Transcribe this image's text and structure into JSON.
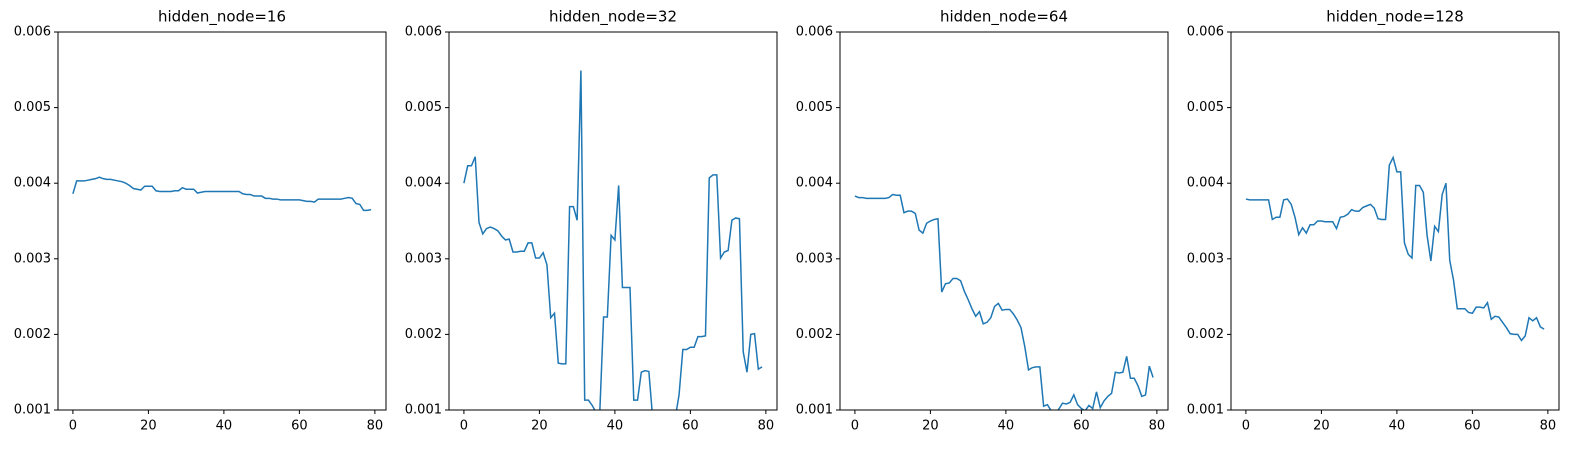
{
  "chart_data": [
    {
      "type": "line",
      "title": "hidden_node=16",
      "x": [
        0,
        1,
        2,
        3,
        4,
        5,
        6,
        7,
        8,
        9,
        10,
        11,
        12,
        13,
        14,
        15,
        16,
        17,
        18,
        19,
        20,
        21,
        22,
        23,
        24,
        25,
        26,
        27,
        28,
        29,
        30,
        31,
        32,
        33,
        34,
        35,
        36,
        37,
        38,
        39,
        40,
        41,
        42,
        43,
        44,
        45,
        46,
        47,
        48,
        49,
        50,
        51,
        52,
        53,
        54,
        55,
        56,
        57,
        58,
        59,
        60,
        61,
        62,
        63,
        64,
        65,
        66,
        67,
        68,
        69,
        70,
        71,
        72,
        73,
        74,
        75,
        76,
        77,
        78,
        79
      ],
      "series": [
        {
          "color": "#1f77b4",
          "values": [
            0.00386,
            0.00403,
            0.00403,
            0.00403,
            0.00404,
            0.00405,
            0.00406,
            0.00408,
            0.00406,
            0.00405,
            0.00405,
            0.00404,
            0.00403,
            0.00402,
            0.004,
            0.00397,
            0.00393,
            0.00392,
            0.00391,
            0.00396,
            0.00396,
            0.00396,
            0.0039,
            0.00389,
            0.00389,
            0.00389,
            0.00389,
            0.0039,
            0.0039,
            0.00394,
            0.00392,
            0.00392,
            0.00392,
            0.00387,
            0.00388,
            0.00389,
            0.00389,
            0.00389,
            0.00389,
            0.00389,
            0.00389,
            0.00389,
            0.00389,
            0.00389,
            0.00389,
            0.00386,
            0.00385,
            0.00385,
            0.00383,
            0.00383,
            0.00383,
            0.0038,
            0.0038,
            0.00379,
            0.00379,
            0.00378,
            0.00378,
            0.00378,
            0.00378,
            0.00378,
            0.00378,
            0.00377,
            0.00376,
            0.00376,
            0.00375,
            0.00379,
            0.00379,
            0.00379,
            0.00379,
            0.00379,
            0.00379,
            0.00379,
            0.0038,
            0.00381,
            0.0038,
            0.00373,
            0.00372,
            0.00364,
            0.00364,
            0.00365
          ]
        }
      ],
      "xlim": [
        -3.95,
        82.95
      ],
      "xticks": [
        0,
        20,
        40,
        60,
        80
      ],
      "ylim": [
        0.001,
        0.006
      ],
      "yticks": [
        0.001,
        0.002,
        0.003,
        0.004,
        0.005,
        0.006
      ]
    },
    {
      "type": "line",
      "title": "hidden_node=32",
      "x": [
        0,
        1,
        2,
        3,
        4,
        5,
        6,
        7,
        8,
        9,
        10,
        11,
        12,
        13,
        14,
        15,
        16,
        17,
        18,
        19,
        20,
        21,
        22,
        23,
        24,
        25,
        26,
        27,
        28,
        29,
        30,
        31,
        32,
        33,
        34,
        35,
        36,
        37,
        38,
        39,
        40,
        41,
        42,
        43,
        44,
        45,
        46,
        47,
        48,
        49,
        50,
        51,
        52,
        53,
        54,
        55,
        56,
        57,
        58,
        59,
        60,
        61,
        62,
        63,
        64,
        65,
        66,
        67,
        68,
        69,
        70,
        71,
        72,
        73,
        74,
        75,
        76,
        77,
        78,
        79
      ],
      "series": [
        {
          "color": "#1f77b4",
          "values": [
            0.004,
            0.00423,
            0.00423,
            0.00435,
            0.00348,
            0.00333,
            0.0034,
            0.00342,
            0.0034,
            0.00337,
            0.0033,
            0.00325,
            0.00326,
            0.00309,
            0.00309,
            0.0031,
            0.0031,
            0.00321,
            0.00321,
            0.00301,
            0.00301,
            0.00308,
            0.00292,
            0.00222,
            0.00228,
            0.00162,
            0.00161,
            0.00161,
            0.00369,
            0.00369,
            0.00351,
            0.00549,
            0.00113,
            0.00113,
            0.00106,
            0.00097,
            0.00097,
            0.00223,
            0.00223,
            0.00331,
            0.00325,
            0.00397,
            0.00262,
            0.00262,
            0.00262,
            0.00113,
            0.00113,
            0.0015,
            0.00152,
            0.00151,
            0.0009,
            0.0009,
            0.0009,
            0.0009,
            0.0009,
            0.0009,
            0.0009,
            0.0012,
            0.0018,
            0.0018,
            0.00183,
            0.00183,
            0.00197,
            0.00197,
            0.00198,
            0.00407,
            0.00411,
            0.00411,
            0.00301,
            0.00309,
            0.00311,
            0.00351,
            0.00354,
            0.00353,
            0.00177,
            0.0015,
            0.002,
            0.00201,
            0.00154,
            0.00157
          ]
        }
      ],
      "xlim": [
        -3.95,
        82.95
      ],
      "xticks": [
        0,
        20,
        40,
        60,
        80
      ],
      "ylim": [
        0.001,
        0.006
      ],
      "yticks": [
        0.001,
        0.002,
        0.003,
        0.004,
        0.005,
        0.006
      ]
    },
    {
      "type": "line",
      "title": "hidden_node=64",
      "x": [
        0,
        1,
        2,
        3,
        4,
        5,
        6,
        7,
        8,
        9,
        10,
        11,
        12,
        13,
        14,
        15,
        16,
        17,
        18,
        19,
        20,
        21,
        22,
        23,
        24,
        25,
        26,
        27,
        28,
        29,
        30,
        31,
        32,
        33,
        34,
        35,
        36,
        37,
        38,
        39,
        40,
        41,
        42,
        43,
        44,
        45,
        46,
        47,
        48,
        49,
        50,
        51,
        52,
        53,
        54,
        55,
        56,
        57,
        58,
        59,
        60,
        61,
        62,
        63,
        64,
        65,
        66,
        67,
        68,
        69,
        70,
        71,
        72,
        73,
        74,
        75,
        76,
        77,
        78,
        79
      ],
      "series": [
        {
          "color": "#1f77b4",
          "values": [
            0.00383,
            0.00381,
            0.00381,
            0.0038,
            0.0038,
            0.0038,
            0.0038,
            0.0038,
            0.0038,
            0.00381,
            0.00385,
            0.00384,
            0.00384,
            0.00361,
            0.00363,
            0.00363,
            0.0036,
            0.00338,
            0.00334,
            0.00347,
            0.0035,
            0.00352,
            0.00353,
            0.00256,
            0.00267,
            0.00268,
            0.00274,
            0.00274,
            0.00271,
            0.00257,
            0.00246,
            0.00234,
            0.00224,
            0.0023,
            0.00214,
            0.00216,
            0.00222,
            0.00237,
            0.00241,
            0.00232,
            0.00233,
            0.00233,
            0.00227,
            0.00219,
            0.00209,
            0.00184,
            0.00153,
            0.00156,
            0.00157,
            0.00157,
            0.00105,
            0.00107,
            0.00099,
            0.00095,
            0.00101,
            0.00109,
            0.00108,
            0.0011,
            0.0012,
            0.00107,
            0.00102,
            0.00099,
            0.00106,
            0.00102,
            0.00124,
            0.00103,
            0.00112,
            0.00118,
            0.00122,
            0.0015,
            0.00149,
            0.0015,
            0.00171,
            0.00142,
            0.00142,
            0.00132,
            0.00118,
            0.0012,
            0.00158,
            0.00143
          ]
        }
      ],
      "xlim": [
        -3.95,
        82.95
      ],
      "xticks": [
        0,
        20,
        40,
        60,
        80
      ],
      "ylim": [
        0.001,
        0.006
      ],
      "yticks": [
        0.001,
        0.002,
        0.003,
        0.004,
        0.005,
        0.006
      ]
    },
    {
      "type": "line",
      "title": "hidden_node=128",
      "x": [
        0,
        1,
        2,
        3,
        4,
        5,
        6,
        7,
        8,
        9,
        10,
        11,
        12,
        13,
        14,
        15,
        16,
        17,
        18,
        19,
        20,
        21,
        22,
        23,
        24,
        25,
        26,
        27,
        28,
        29,
        30,
        31,
        32,
        33,
        34,
        35,
        36,
        37,
        38,
        39,
        40,
        41,
        42,
        43,
        44,
        45,
        46,
        47,
        48,
        49,
        50,
        51,
        52,
        53,
        54,
        55,
        56,
        57,
        58,
        59,
        60,
        61,
        62,
        63,
        64,
        65,
        66,
        67,
        68,
        69,
        70,
        71,
        72,
        73,
        74,
        75,
        76,
        77,
        78,
        79
      ],
      "series": [
        {
          "color": "#1f77b4",
          "values": [
            0.00379,
            0.00378,
            0.00378,
            0.00378,
            0.00378,
            0.00378,
            0.00378,
            0.00352,
            0.00355,
            0.00355,
            0.00378,
            0.00379,
            0.00372,
            0.00355,
            0.00332,
            0.00341,
            0.00334,
            0.00345,
            0.00345,
            0.0035,
            0.0035,
            0.00349,
            0.00349,
            0.00349,
            0.0034,
            0.00355,
            0.00356,
            0.00359,
            0.00365,
            0.00363,
            0.00363,
            0.00368,
            0.0037,
            0.00372,
            0.00367,
            0.00353,
            0.00352,
            0.00352,
            0.00424,
            0.00434,
            0.00415,
            0.00415,
            0.00321,
            0.00306,
            0.00301,
            0.00397,
            0.00397,
            0.00388,
            0.00331,
            0.00297,
            0.00343,
            0.00336,
            0.00385,
            0.004,
            0.00298,
            0.00272,
            0.00234,
            0.00234,
            0.00234,
            0.00229,
            0.00228,
            0.00236,
            0.00236,
            0.00235,
            0.00242,
            0.0022,
            0.00224,
            0.00223,
            0.00216,
            0.00209,
            0.00201,
            0.002,
            0.002,
            0.00192,
            0.00198,
            0.00222,
            0.00218,
            0.00222,
            0.0021,
            0.00207
          ]
        }
      ],
      "xlim": [
        -3.95,
        82.95
      ],
      "xticks": [
        0,
        20,
        40,
        60,
        80
      ],
      "ylim": [
        0.001,
        0.006
      ],
      "yticks": [
        0.001,
        0.002,
        0.003,
        0.004,
        0.005,
        0.006
      ]
    }
  ]
}
